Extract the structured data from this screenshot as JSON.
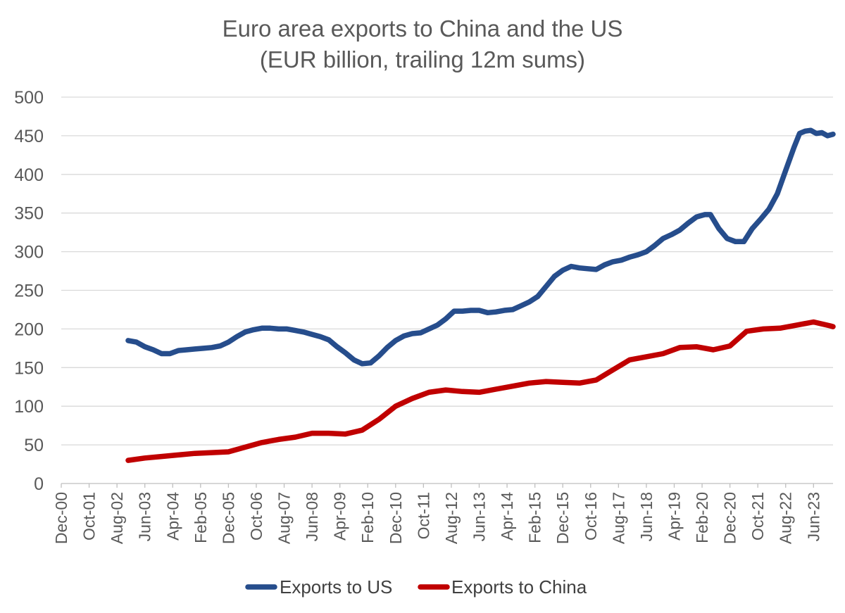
{
  "chart_data": {
    "type": "line",
    "title": "Euro area exports to China and the US",
    "subtitle": "(EUR billion, trailing 12m sums)",
    "xlabel": "",
    "ylabel": "",
    "ylim": [
      0,
      500
    ],
    "yticks": [
      0,
      50,
      100,
      150,
      200,
      250,
      300,
      350,
      400,
      450,
      500
    ],
    "grid": true,
    "legend": "bottom",
    "x_range": [
      "2000-12",
      "2024-01"
    ],
    "x_tick_labels": [
      "Dec-00",
      "Oct-01",
      "Aug-02",
      "Jun-03",
      "Apr-04",
      "Feb-05",
      "Dec-05",
      "Oct-06",
      "Aug-07",
      "Jun-08",
      "Apr-09",
      "Feb-10",
      "Dec-10",
      "Oct-11",
      "Aug-12",
      "Jun-13",
      "Apr-14",
      "Feb-15",
      "Dec-15",
      "Oct-16",
      "Aug-17",
      "Jun-18",
      "Apr-19",
      "Feb-20",
      "Dec-20",
      "Oct-21",
      "Aug-22",
      "Jun-23"
    ],
    "series": [
      {
        "name": "Exports to US",
        "color": "#264d8c",
        "points": [
          [
            "2002-12",
            185
          ],
          [
            "2003-03",
            183
          ],
          [
            "2003-06",
            177
          ],
          [
            "2003-09",
            173
          ],
          [
            "2003-12",
            168
          ],
          [
            "2004-03",
            168
          ],
          [
            "2004-06",
            172
          ],
          [
            "2004-09",
            173
          ],
          [
            "2004-12",
            174
          ],
          [
            "2005-03",
            175
          ],
          [
            "2005-06",
            176
          ],
          [
            "2005-09",
            178
          ],
          [
            "2005-12",
            183
          ],
          [
            "2006-03",
            190
          ],
          [
            "2006-06",
            196
          ],
          [
            "2006-09",
            199
          ],
          [
            "2006-12",
            201
          ],
          [
            "2007-03",
            201
          ],
          [
            "2007-06",
            200
          ],
          [
            "2007-09",
            200
          ],
          [
            "2007-12",
            198
          ],
          [
            "2008-03",
            196
          ],
          [
            "2008-06",
            193
          ],
          [
            "2008-09",
            190
          ],
          [
            "2008-12",
            186
          ],
          [
            "2009-03",
            177
          ],
          [
            "2009-06",
            169
          ],
          [
            "2009-09",
            160
          ],
          [
            "2009-12",
            155
          ],
          [
            "2010-03",
            156
          ],
          [
            "2010-06",
            165
          ],
          [
            "2010-09",
            176
          ],
          [
            "2010-12",
            185
          ],
          [
            "2011-03",
            191
          ],
          [
            "2011-06",
            194
          ],
          [
            "2011-09",
            195
          ],
          [
            "2011-12",
            200
          ],
          [
            "2012-03",
            205
          ],
          [
            "2012-06",
            213
          ],
          [
            "2012-09",
            223
          ],
          [
            "2012-12",
            223
          ],
          [
            "2013-03",
            224
          ],
          [
            "2013-06",
            224
          ],
          [
            "2013-09",
            221
          ],
          [
            "2013-12",
            222
          ],
          [
            "2014-03",
            224
          ],
          [
            "2014-06",
            225
          ],
          [
            "2014-09",
            230
          ],
          [
            "2014-12",
            235
          ],
          [
            "2015-03",
            242
          ],
          [
            "2015-06",
            255
          ],
          [
            "2015-09",
            268
          ],
          [
            "2015-12",
            276
          ],
          [
            "2016-03",
            281
          ],
          [
            "2016-06",
            279
          ],
          [
            "2016-09",
            278
          ],
          [
            "2016-12",
            277
          ],
          [
            "2017-03",
            283
          ],
          [
            "2017-06",
            287
          ],
          [
            "2017-09",
            289
          ],
          [
            "2017-12",
            293
          ],
          [
            "2018-03",
            296
          ],
          [
            "2018-06",
            300
          ],
          [
            "2018-09",
            308
          ],
          [
            "2018-12",
            317
          ],
          [
            "2019-03",
            322
          ],
          [
            "2019-06",
            328
          ],
          [
            "2019-09",
            337
          ],
          [
            "2019-12",
            345
          ],
          [
            "2020-03",
            348
          ],
          [
            "2020-05",
            348
          ],
          [
            "2020-08",
            330
          ],
          [
            "2020-11",
            317
          ],
          [
            "2021-02",
            313
          ],
          [
            "2021-05",
            313
          ],
          [
            "2021-08",
            330
          ],
          [
            "2021-11",
            342
          ],
          [
            "2022-02",
            355
          ],
          [
            "2022-05",
            375
          ],
          [
            "2022-08",
            405
          ],
          [
            "2022-11",
            435
          ],
          [
            "2023-01",
            453
          ],
          [
            "2023-03",
            456
          ],
          [
            "2023-05",
            457
          ],
          [
            "2023-07",
            453
          ],
          [
            "2023-09",
            454
          ],
          [
            "2023-11",
            450
          ],
          [
            "2024-01",
            452
          ]
        ]
      },
      {
        "name": "Exports to China",
        "color": "#c00000",
        "points": [
          [
            "2002-12",
            30
          ],
          [
            "2003-06",
            33
          ],
          [
            "2003-12",
            35
          ],
          [
            "2004-06",
            37
          ],
          [
            "2004-12",
            39
          ],
          [
            "2005-06",
            40
          ],
          [
            "2005-12",
            41
          ],
          [
            "2006-06",
            47
          ],
          [
            "2006-12",
            53
          ],
          [
            "2007-06",
            57
          ],
          [
            "2007-12",
            60
          ],
          [
            "2008-06",
            65
          ],
          [
            "2008-12",
            65
          ],
          [
            "2009-06",
            64
          ],
          [
            "2009-12",
            69
          ],
          [
            "2010-06",
            83
          ],
          [
            "2010-12",
            100
          ],
          [
            "2011-06",
            110
          ],
          [
            "2011-12",
            118
          ],
          [
            "2012-06",
            121
          ],
          [
            "2012-12",
            119
          ],
          [
            "2013-06",
            118
          ],
          [
            "2013-12",
            122
          ],
          [
            "2014-06",
            126
          ],
          [
            "2014-12",
            130
          ],
          [
            "2015-06",
            132
          ],
          [
            "2015-12",
            131
          ],
          [
            "2016-06",
            130
          ],
          [
            "2016-12",
            134
          ],
          [
            "2017-06",
            147
          ],
          [
            "2017-12",
            160
          ],
          [
            "2018-06",
            164
          ],
          [
            "2018-12",
            168
          ],
          [
            "2019-06",
            176
          ],
          [
            "2019-12",
            177
          ],
          [
            "2020-06",
            173
          ],
          [
            "2020-12",
            178
          ],
          [
            "2021-06",
            197
          ],
          [
            "2021-12",
            200
          ],
          [
            "2022-06",
            201
          ],
          [
            "2022-12",
            205
          ],
          [
            "2023-06",
            209
          ],
          [
            "2023-12",
            204
          ],
          [
            "2024-01",
            203
          ]
        ]
      }
    ]
  }
}
